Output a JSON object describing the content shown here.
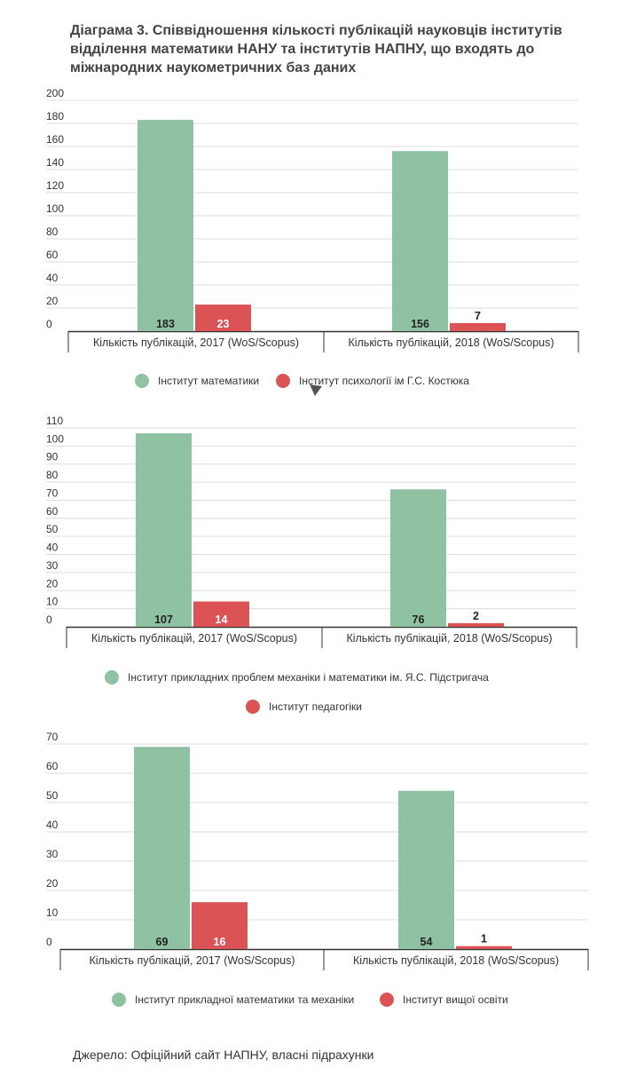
{
  "title": "Діаграма 3. Співвідношення кількості публікацій науковців інститутів відділення математики НАНУ та інститутів НАПНУ, що входять до міжнародних наукометричних баз даних",
  "colors": {
    "green": "#8ec2a3",
    "red": "#dc5356",
    "grid": "#dddddd",
    "axis": "#333333"
  },
  "chart_data": [
    {
      "type": "bar",
      "categories": [
        "Кількість публікацій, 2017 (WoS/Scopus)",
        "Кількість публікацій, 2018 (WoS/Scopus)"
      ],
      "series": [
        {
          "name": "Інститут математики",
          "values": [
            183,
            156
          ],
          "color": "#8ec2a3"
        },
        {
          "name": "Інститут психології ім Г.С. Костюка",
          "values": [
            23,
            7
          ],
          "color": "#dc5356"
        }
      ],
      "yticks": [
        "0",
        "20",
        "40",
        "60",
        "80",
        "100",
        "120",
        "140",
        "160",
        "180",
        "200"
      ],
      "ylim": [
        0,
        200
      ]
    },
    {
      "type": "bar",
      "categories": [
        "Кількість публікацій, 2017 (WoS/Scopus)",
        "Кількість публікацій, 2018 (WoS/Scopus)"
      ],
      "series": [
        {
          "name": "Інститут прикладних проблем механіки і математики ім. Я.С. Підстригача",
          "values": [
            107,
            76
          ],
          "color": "#8ec2a3"
        },
        {
          "name": "Інститут педагогіки",
          "values": [
            14,
            2
          ],
          "color": "#dc5356"
        }
      ],
      "yticks": [
        "0",
        "10",
        "20",
        "30",
        "40",
        "50",
        "60",
        "70",
        "80",
        "90",
        "100",
        "110"
      ],
      "ylim": [
        0,
        110
      ]
    },
    {
      "type": "bar",
      "categories": [
        "Кількість публікацій, 2017 (WoS/Scopus)",
        "Кількість публікацій, 2018 (WoS/Scopus)"
      ],
      "series": [
        {
          "name": "Інститут прикладної математики та механіки",
          "values": [
            69,
            54
          ],
          "color": "#8ec2a3"
        },
        {
          "name": "Інститут вищої освіти",
          "values": [
            16,
            1
          ],
          "color": "#dc5356"
        }
      ],
      "yticks": [
        "0",
        "10",
        "20",
        "30",
        "40",
        "50",
        "60",
        "70"
      ],
      "ylim": [
        0,
        70
      ]
    }
  ],
  "source": "Джерело: Офіційний сайт НАПНУ, власні підрахунки"
}
